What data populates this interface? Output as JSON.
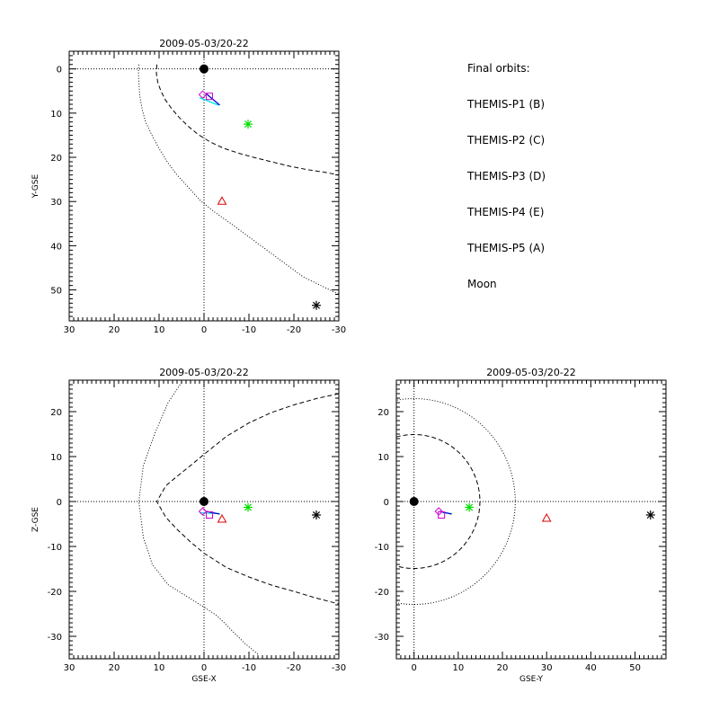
{
  "chart_data": [
    {
      "type": "scatter",
      "title": "2009-05-03/20-22",
      "xlabel": "",
      "ylabel": "Y-GSE",
      "xlim": [
        30,
        -30
      ],
      "ylim": [
        57,
        -4
      ],
      "xticks": [
        30,
        20,
        10,
        0,
        -10,
        -20,
        -30
      ],
      "yticks": [
        0,
        10,
        20,
        30,
        40,
        50
      ],
      "earth": [
        0,
        0
      ],
      "guides": {
        "x": 0,
        "y": 0
      },
      "magnetopause": [
        [
          10.5,
          -1
        ],
        [
          10.6,
          1
        ],
        [
          10.3,
          3
        ],
        [
          9.6,
          5
        ],
        [
          8.6,
          7
        ],
        [
          7.2,
          9
        ],
        [
          5.5,
          11
        ],
        [
          3.5,
          13
        ],
        [
          1.2,
          14.9
        ],
        [
          -1.5,
          16.6
        ],
        [
          -4.5,
          18
        ],
        [
          -7.8,
          19.1
        ],
        [
          -11,
          20
        ],
        [
          -15,
          21
        ],
        [
          -19,
          22
        ],
        [
          -23,
          22.8
        ],
        [
          -27,
          23.4
        ],
        [
          -30,
          24
        ]
      ],
      "bow_shock": [
        [
          14.5,
          -1
        ],
        [
          14.6,
          0.5
        ],
        [
          14.5,
          3
        ],
        [
          14.3,
          6
        ],
        [
          13.8,
          9
        ],
        [
          13,
          12
        ],
        [
          11.6,
          15
        ],
        [
          10,
          18
        ],
        [
          8.2,
          21
        ],
        [
          6,
          24
        ],
        [
          3.3,
          27
        ],
        [
          0.6,
          30
        ],
        [
          -2.5,
          32.5
        ],
        [
          -6,
          35
        ],
        [
          -10,
          38
        ],
        [
          -14,
          41
        ],
        [
          -18,
          44
        ],
        [
          -22,
          47
        ],
        [
          -26,
          49
        ],
        [
          -30,
          51
        ]
      ],
      "series": [
        {
          "name": "THEMIS-P1 (B)",
          "marker": "triangle",
          "color": "#e00000",
          "points": [
            [
              -4,
              30
            ]
          ]
        },
        {
          "name": "THEMIS-P2 (C)",
          "marker": "asterisk",
          "color": "#00dd00",
          "points": [
            [
              -9.8,
              12.5
            ]
          ]
        },
        {
          "name": "THEMIS-P3 (D)",
          "marker": "track",
          "color": "#00e5e5",
          "points": [
            [
              1,
              6.5
            ],
            [
              -3.2,
              8.2
            ]
          ]
        },
        {
          "name": "THEMIS-P4 (E)",
          "marker": "track",
          "color": "#0000cc",
          "points": [
            [
              -0.5,
              5.6
            ],
            [
              -3.5,
              8.2
            ]
          ]
        },
        {
          "name": "THEMIS-P5 (A)",
          "marker": "square-diamond",
          "color": "#d000d0",
          "points": [
            [
              -1.2,
              6.2
            ],
            [
              0.3,
              5.8
            ]
          ]
        },
        {
          "name": "Moon",
          "marker": "asterisk",
          "color": "#000000",
          "points": [
            [
              -25,
              53.5
            ]
          ]
        }
      ]
    },
    {
      "type": "scatter",
      "title": "2009-05-03/20-22",
      "xlabel": "GSE-X",
      "ylabel": "Z-GSE",
      "xlim": [
        30,
        -30
      ],
      "ylim": [
        -35,
        27
      ],
      "xticks": [
        30,
        20,
        10,
        0,
        -10,
        -20,
        -30
      ],
      "yticks": [
        -30,
        -20,
        -10,
        0,
        10,
        20
      ],
      "earth": [
        0,
        0
      ],
      "guides": {
        "x": 0,
        "y": 0
      },
      "magnetopause": [
        [
          -30,
          24
        ],
        [
          -25,
          22.9
        ],
        [
          -20,
          21.5
        ],
        [
          -15,
          19.8
        ],
        [
          -10,
          17.5
        ],
        [
          -5,
          14.5
        ],
        [
          0,
          10.5
        ],
        [
          3,
          8
        ],
        [
          6,
          5.6
        ],
        [
          8.5,
          3.5
        ],
        [
          10.5,
          0
        ],
        [
          8.5,
          -3.5
        ],
        [
          6,
          -6.2
        ],
        [
          3,
          -9
        ],
        [
          0,
          -11.5
        ],
        [
          -5,
          -14.7
        ],
        [
          -10,
          -16.8
        ],
        [
          -15,
          -18.6
        ],
        [
          -20,
          -20
        ],
        [
          -25,
          -21.5
        ],
        [
          -30,
          -22.8
        ]
      ],
      "bow_shock": [
        [
          5,
          26.5
        ],
        [
          8,
          22
        ],
        [
          11,
          15
        ],
        [
          13.5,
          8
        ],
        [
          14.5,
          0
        ],
        [
          13.5,
          -8
        ],
        [
          11.5,
          -14
        ],
        [
          8,
          -18.5
        ],
        [
          4,
          -21
        ],
        [
          0,
          -23.5
        ],
        [
          -3,
          -25.5
        ],
        [
          -6,
          -28.5
        ],
        [
          -9,
          -31.5
        ],
        [
          -12,
          -34
        ]
      ],
      "series": [
        {
          "name": "THEMIS-P1 (B)",
          "marker": "triangle",
          "color": "#e00000",
          "points": [
            [
              -4,
              -4
            ]
          ]
        },
        {
          "name": "THEMIS-P2 (C)",
          "marker": "asterisk",
          "color": "#00dd00",
          "points": [
            [
              -9.8,
              -1.3
            ]
          ]
        },
        {
          "name": "THEMIS-P3 (D)",
          "marker": "track",
          "color": "#00e5e5",
          "points": [
            [
              1,
              -2.5
            ],
            [
              -3.5,
              -2.7
            ]
          ]
        },
        {
          "name": "THEMIS-P4 (E)",
          "marker": "track",
          "color": "#0000cc",
          "points": [
            [
              -0.5,
              -2.2
            ],
            [
              -3.5,
              -2.8
            ]
          ]
        },
        {
          "name": "THEMIS-P5 (A)",
          "marker": "square-diamond",
          "color": "#d000d0",
          "points": [
            [
              -1.2,
              -3
            ],
            [
              0.3,
              -2.2
            ]
          ]
        },
        {
          "name": "Moon",
          "marker": "asterisk",
          "color": "#000000",
          "points": [
            [
              -25,
              -3
            ]
          ]
        }
      ]
    },
    {
      "type": "scatter",
      "title": "2009-05-03/20-22",
      "xlabel": "GSE-Y",
      "ylabel": "",
      "xlim": [
        -4,
        57
      ],
      "ylim": [
        -35,
        27
      ],
      "xticks": [
        0,
        10,
        20,
        30,
        40,
        50
      ],
      "yticks": [
        -30,
        -20,
        -10,
        0,
        10,
        20
      ],
      "earth": [
        0,
        0
      ],
      "guides": {
        "x": 0,
        "y": 0
      },
      "magnetopause_circle": 14.9,
      "bow_shock_circle": 22.9,
      "series": [
        {
          "name": "THEMIS-P1 (B)",
          "marker": "triangle",
          "color": "#e00000",
          "points": [
            [
              30,
              -3.8
            ]
          ]
        },
        {
          "name": "THEMIS-P2 (C)",
          "marker": "asterisk",
          "color": "#00dd00",
          "points": [
            [
              12.5,
              -1.3
            ]
          ]
        },
        {
          "name": "THEMIS-P3 (D)",
          "marker": "track",
          "color": "#00e5e5",
          "points": [
            [
              6.5,
              -2.5
            ],
            [
              8.6,
              -2.7
            ]
          ]
        },
        {
          "name": "THEMIS-P4 (E)",
          "marker": "track",
          "color": "#0000cc",
          "points": [
            [
              5.8,
              -2.2
            ],
            [
              8.5,
              -2.8
            ]
          ]
        },
        {
          "name": "THEMIS-P5 (A)",
          "marker": "square-diamond",
          "color": "#d000d0",
          "points": [
            [
              6.2,
              -3
            ],
            [
              5.6,
              -2.2
            ]
          ]
        },
        {
          "name": "Moon",
          "marker": "asterisk",
          "color": "#000000",
          "points": [
            [
              53.5,
              -3
            ]
          ]
        }
      ]
    }
  ],
  "legend": {
    "title": "Final orbits:",
    "entries": [
      {
        "label": "THEMIS-P1 (B)",
        "color": "#e00000"
      },
      {
        "label": "THEMIS-P2 (C)",
        "color": "#00dd00"
      },
      {
        "label": "THEMIS-P3 (D)",
        "color": "#00e5e5"
      },
      {
        "label": "THEMIS-P4 (E)",
        "color": "#0000cc"
      },
      {
        "label": "THEMIS-P5 (A)",
        "color": "#d000d0"
      },
      {
        "label": "Moon",
        "color": "#000000"
      }
    ]
  }
}
